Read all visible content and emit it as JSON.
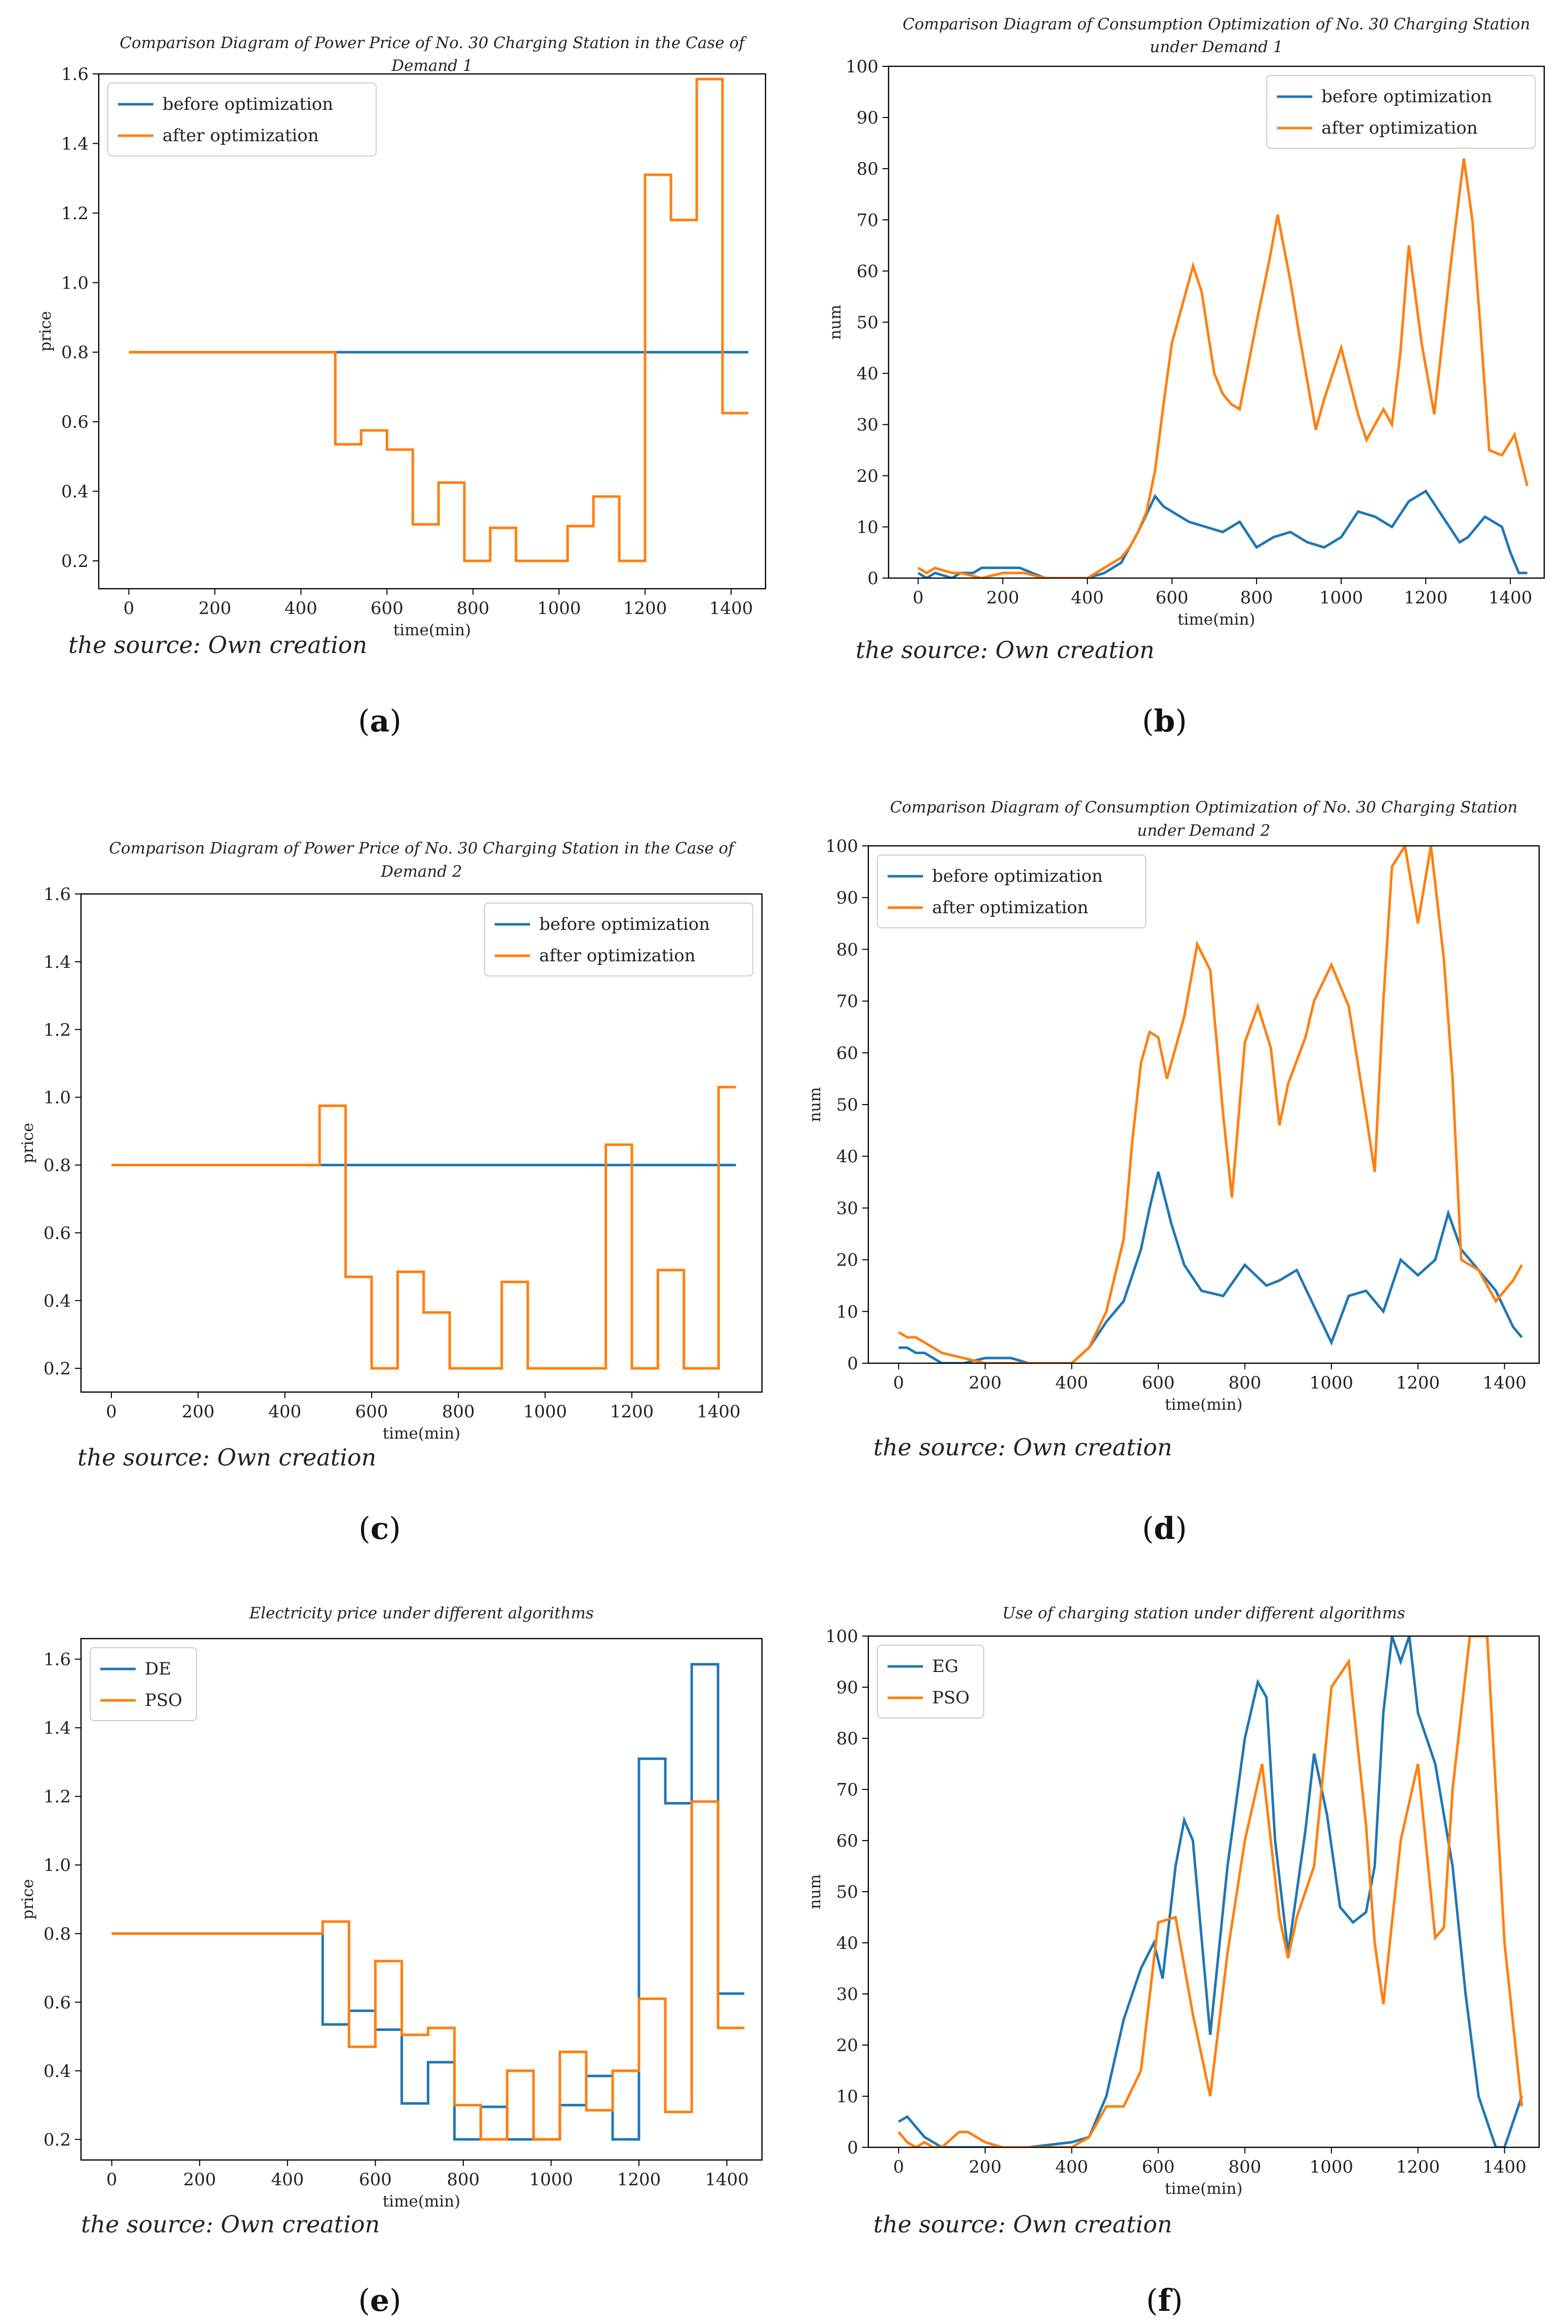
{
  "chart_data": [
    {
      "id": "a",
      "type": "line",
      "title": "Comparison Diagram of Power Price of No. 30 Charging Station in the Case of Demand 1",
      "title_lines": [
        "Comparison Diagram of Power Price of No. 30 Charging Station in the Case of",
        "Demand 1"
      ],
      "xlabel": "time(min)",
      "ylabel": "price",
      "xlim": [
        -70,
        1480
      ],
      "ylim": [
        0.12,
        1.6
      ],
      "xticks": [
        0,
        200,
        400,
        600,
        800,
        1000,
        1200,
        1400
      ],
      "yticks": [
        0.2,
        0.4,
        0.6,
        0.8,
        1.0,
        1.2,
        1.4,
        1.6
      ],
      "ytick_labels": [
        "0.2",
        "0.4",
        "0.6",
        "0.8",
        "1.0",
        "1.2",
        "1.4",
        "1.6"
      ],
      "legend_position": "upper-left",
      "source": "the source: Own creation",
      "panel_label": "a",
      "series": [
        {
          "name": "before optimization",
          "color": "#1f77b4",
          "step": true,
          "x": [
            0,
            1440
          ],
          "y": [
            0.8,
            0.8
          ]
        },
        {
          "name": "after optimization",
          "color": "#ff7f0e",
          "step": true,
          "x": [
            0,
            480,
            540,
            600,
            660,
            720,
            780,
            840,
            900,
            1020,
            1080,
            1140,
            1200,
            1260,
            1320,
            1380,
            1440
          ],
          "y": [
            0.8,
            0.535,
            0.575,
            0.52,
            0.305,
            0.425,
            0.2,
            0.295,
            0.2,
            0.3,
            0.385,
            0.2,
            1.31,
            1.18,
            1.585,
            0.625,
            0.625
          ]
        }
      ]
    },
    {
      "id": "b",
      "type": "line",
      "title": "Comparison Diagram of Consumption Optimization of No. 30 Charging Station under Demand 1",
      "title_lines": [
        "Comparison Diagram of Consumption Optimization of No. 30 Charging Station",
        "under Demand 1"
      ],
      "xlabel": "time(min)",
      "ylabel": "num",
      "xlim": [
        -70,
        1480
      ],
      "ylim": [
        0,
        100
      ],
      "xticks": [
        0,
        200,
        400,
        600,
        800,
        1000,
        1200,
        1400
      ],
      "yticks": [
        0,
        10,
        20,
        30,
        40,
        50,
        60,
        70,
        80,
        90,
        100
      ],
      "legend_position": "upper-right",
      "source": "the source: Own creation",
      "panel_label": "b",
      "series": [
        {
          "name": "before optimization",
          "color": "#1f77b4",
          "step": false,
          "x": [
            0,
            20,
            40,
            80,
            100,
            130,
            150,
            200,
            240,
            270,
            300,
            400,
            440,
            480,
            500,
            520,
            560,
            580,
            600,
            640,
            680,
            720,
            760,
            800,
            840,
            880,
            920,
            960,
            1000,
            1040,
            1080,
            1120,
            1160,
            1200,
            1240,
            1280,
            1300,
            1340,
            1380,
            1400,
            1420,
            1440
          ],
          "y": [
            1,
            0,
            1,
            0,
            1,
            1,
            2,
            2,
            2,
            1,
            0,
            0,
            1,
            3,
            6,
            9,
            16,
            14,
            13,
            11,
            10,
            9,
            11,
            6,
            8,
            9,
            7,
            6,
            8,
            13,
            12,
            10,
            15,
            17,
            12,
            7,
            8,
            12,
            10,
            5,
            1,
            1
          ]
        },
        {
          "name": "after optimization",
          "color": "#ff7f0e",
          "step": false,
          "x": [
            0,
            20,
            40,
            80,
            100,
            150,
            200,
            250,
            300,
            400,
            440,
            480,
            500,
            520,
            540,
            560,
            580,
            600,
            620,
            650,
            670,
            700,
            720,
            740,
            760,
            800,
            830,
            850,
            880,
            900,
            940,
            960,
            1000,
            1040,
            1060,
            1100,
            1120,
            1140,
            1160,
            1190,
            1220,
            1260,
            1290,
            1310,
            1330,
            1350,
            1380,
            1410,
            1440
          ],
          "y": [
            2,
            1,
            2,
            1,
            1,
            0,
            1,
            1,
            0,
            0,
            2,
            4,
            6,
            9,
            13,
            21,
            34,
            46,
            52,
            61,
            56,
            40,
            36,
            34,
            33,
            50,
            62,
            71,
            58,
            48,
            29,
            35,
            45,
            32,
            27,
            33,
            30,
            44,
            65,
            46,
            32,
            62,
            82,
            70,
            48,
            25,
            24,
            28,
            18
          ]
        }
      ]
    },
    {
      "id": "c",
      "type": "line",
      "title": "Comparison Diagram of Power Price of No. 30 Charging Station in the Case of Demand 2",
      "title_lines": [
        "Comparison Diagram of Power Price of No. 30 Charging Station in the Case of",
        "Demand 2"
      ],
      "xlabel": "time(min)",
      "ylabel": "price",
      "xlim": [
        -70,
        1500
      ],
      "ylim": [
        0.13,
        1.6
      ],
      "xticks": [
        0,
        200,
        400,
        600,
        800,
        1000,
        1200,
        1400
      ],
      "yticks": [
        0.2,
        0.4,
        0.6,
        0.8,
        1.0,
        1.2,
        1.4,
        1.6
      ],
      "ytick_labels": [
        "0.2",
        "0.4",
        "0.6",
        "0.8",
        "1.0",
        "1.2",
        "1.4",
        "1.6"
      ],
      "legend_position": "upper-right",
      "source": "the source: Own creation",
      "panel_label": "c",
      "series": [
        {
          "name": "before optimization",
          "color": "#1f77b4",
          "step": true,
          "x": [
            0,
            1440
          ],
          "y": [
            0.8,
            0.8
          ]
        },
        {
          "name": "after optimization",
          "color": "#ff7f0e",
          "step": true,
          "x": [
            0,
            480,
            540,
            600,
            660,
            720,
            780,
            900,
            960,
            1140,
            1200,
            1260,
            1320,
            1380,
            1400,
            1440
          ],
          "y": [
            0.8,
            0.975,
            0.47,
            0.2,
            0.485,
            0.365,
            0.2,
            0.455,
            0.2,
            0.86,
            0.2,
            0.49,
            0.2,
            0.2,
            1.03,
            1.03
          ]
        }
      ]
    },
    {
      "id": "d",
      "type": "line",
      "title": "Comparison Diagram of Consumption Optimization of No. 30 Charging Station under Demand 2",
      "title_lines": [
        "Comparison Diagram of Consumption Optimization of No. 30 Charging Station",
        "under Demand 2"
      ],
      "xlabel": "time(min)",
      "ylabel": "num",
      "xlim": [
        -70,
        1480
      ],
      "ylim": [
        0,
        100
      ],
      "xticks": [
        0,
        200,
        400,
        600,
        800,
        1000,
        1200,
        1400
      ],
      "yticks": [
        0,
        10,
        20,
        30,
        40,
        50,
        60,
        70,
        80,
        90,
        100
      ],
      "legend_position": "upper-left",
      "source": "the source: Own creation",
      "panel_label": "d",
      "series": [
        {
          "name": "before optimization",
          "color": "#1f77b4",
          "step": false,
          "x": [
            0,
            20,
            40,
            60,
            80,
            100,
            150,
            200,
            260,
            300,
            400,
            440,
            480,
            520,
            560,
            580,
            600,
            630,
            660,
            700,
            750,
            800,
            850,
            880,
            920,
            960,
            1000,
            1040,
            1080,
            1120,
            1160,
            1200,
            1240,
            1270,
            1300,
            1340,
            1380,
            1420,
            1440
          ],
          "y": [
            3,
            3,
            2,
            2,
            1,
            0,
            0,
            1,
            1,
            0,
            0,
            3,
            8,
            12,
            22,
            30,
            37,
            27,
            19,
            14,
            13,
            19,
            15,
            16,
            18,
            11,
            4,
            13,
            14,
            10,
            20,
            17,
            20,
            29,
            22,
            18,
            14,
            7,
            5
          ]
        },
        {
          "name": "after optimization",
          "color": "#ff7f0e",
          "step": false,
          "x": [
            0,
            20,
            40,
            60,
            80,
            100,
            150,
            200,
            300,
            400,
            440,
            480,
            520,
            540,
            560,
            580,
            600,
            620,
            660,
            690,
            720,
            750,
            770,
            800,
            830,
            860,
            880,
            900,
            940,
            960,
            1000,
            1040,
            1080,
            1100,
            1120,
            1140,
            1170,
            1200,
            1230,
            1260,
            1280,
            1300,
            1340,
            1380,
            1420,
            1440
          ],
          "y": [
            6,
            5,
            5,
            4,
            3,
            2,
            1,
            0,
            0,
            0,
            3,
            10,
            24,
            43,
            58,
            64,
            63,
            55,
            67,
            81,
            76,
            48,
            32,
            62,
            69,
            61,
            46,
            54,
            63,
            70,
            77,
            69,
            48,
            37,
            70,
            96,
            100,
            85,
            100,
            78,
            55,
            20,
            18,
            12,
            16,
            19
          ]
        }
      ]
    },
    {
      "id": "e",
      "type": "line",
      "title": "Electricity price under different algorithms",
      "title_lines": [
        "Electricity price under different algorithms"
      ],
      "xlabel": "time(min)",
      "ylabel": "price",
      "xlim": [
        -70,
        1480
      ],
      "ylim": [
        0.14,
        1.66
      ],
      "xticks": [
        0,
        200,
        400,
        600,
        800,
        1000,
        1200,
        1400
      ],
      "yticks": [
        0.2,
        0.4,
        0.6,
        0.8,
        1.0,
        1.2,
        1.4,
        1.6
      ],
      "ytick_labels": [
        "0.2",
        "0.4",
        "0.6",
        "0.8",
        "1.0",
        "1.2",
        "1.4",
        "1.6"
      ],
      "legend_position": "upper-left",
      "source": "the source: Own creation",
      "panel_label": "e",
      "series": [
        {
          "name": "DE",
          "color": "#1f77b4",
          "step": true,
          "x": [
            0,
            480,
            540,
            600,
            660,
            720,
            780,
            840,
            900,
            960,
            1020,
            1080,
            1140,
            1200,
            1260,
            1320,
            1380,
            1440
          ],
          "y": [
            0.8,
            0.535,
            0.575,
            0.52,
            0.305,
            0.425,
            0.2,
            0.295,
            0.2,
            0.2,
            0.3,
            0.385,
            0.2,
            1.31,
            1.18,
            1.585,
            0.625,
            0.625
          ]
        },
        {
          "name": "PSO",
          "color": "#ff7f0e",
          "step": true,
          "x": [
            0,
            480,
            540,
            600,
            660,
            720,
            780,
            840,
            900,
            960,
            1020,
            1080,
            1140,
            1200,
            1260,
            1320,
            1380,
            1440
          ],
          "y": [
            0.8,
            0.835,
            0.47,
            0.72,
            0.505,
            0.525,
            0.3,
            0.2,
            0.4,
            0.2,
            0.455,
            0.285,
            0.4,
            0.61,
            0.28,
            1.185,
            0.525,
            0.525
          ]
        }
      ]
    },
    {
      "id": "f",
      "type": "line",
      "title": "Use of charging station under different algorithms",
      "title_lines": [
        "Use of charging station under different algorithms"
      ],
      "xlabel": "time(min)",
      "ylabel": "num",
      "xlim": [
        -70,
        1480
      ],
      "ylim": [
        0,
        100
      ],
      "xticks": [
        0,
        200,
        400,
        600,
        800,
        1000,
        1200,
        1400
      ],
      "yticks": [
        0,
        10,
        20,
        30,
        40,
        50,
        60,
        70,
        80,
        90,
        100
      ],
      "legend_position": "upper-left",
      "source": "the source: Own creation",
      "panel_label": "f",
      "series": [
        {
          "name": "EG",
          "color": "#1f77b4",
          "step": false,
          "x": [
            0,
            20,
            40,
            60,
            80,
            100,
            150,
            200,
            300,
            400,
            440,
            480,
            520,
            560,
            590,
            610,
            640,
            660,
            680,
            720,
            760,
            800,
            830,
            850,
            870,
            900,
            940,
            960,
            990,
            1020,
            1050,
            1080,
            1100,
            1120,
            1140,
            1160,
            1180,
            1200,
            1240,
            1280,
            1310,
            1340,
            1380,
            1400,
            1440
          ],
          "y": [
            5,
            6,
            4,
            2,
            1,
            0,
            0,
            0,
            0,
            1,
            2,
            10,
            25,
            35,
            40,
            33,
            55,
            64,
            60,
            22,
            55,
            80,
            91,
            88,
            60,
            38,
            62,
            77,
            65,
            47,
            44,
            46,
            55,
            85,
            100,
            95,
            100,
            85,
            75,
            55,
            30,
            10,
            0,
            0,
            10
          ]
        },
        {
          "name": "PSO",
          "color": "#ff7f0e",
          "step": false,
          "x": [
            0,
            20,
            40,
            60,
            80,
            100,
            140,
            160,
            200,
            240,
            300,
            400,
            440,
            480,
            520,
            560,
            600,
            640,
            680,
            720,
            760,
            800,
            840,
            880,
            900,
            920,
            960,
            1000,
            1040,
            1080,
            1100,
            1120,
            1160,
            1200,
            1240,
            1260,
            1280,
            1320,
            1360,
            1380,
            1400,
            1440
          ],
          "y": [
            3,
            1,
            0,
            1,
            0,
            0,
            3,
            3,
            1,
            0,
            0,
            0,
            2,
            8,
            8,
            15,
            44,
            45,
            26,
            10,
            38,
            60,
            75,
            45,
            37,
            45,
            55,
            90,
            95,
            63,
            40,
            28,
            60,
            75,
            41,
            43,
            70,
            100,
            100,
            70,
            40,
            8
          ]
        }
      ]
    }
  ]
}
